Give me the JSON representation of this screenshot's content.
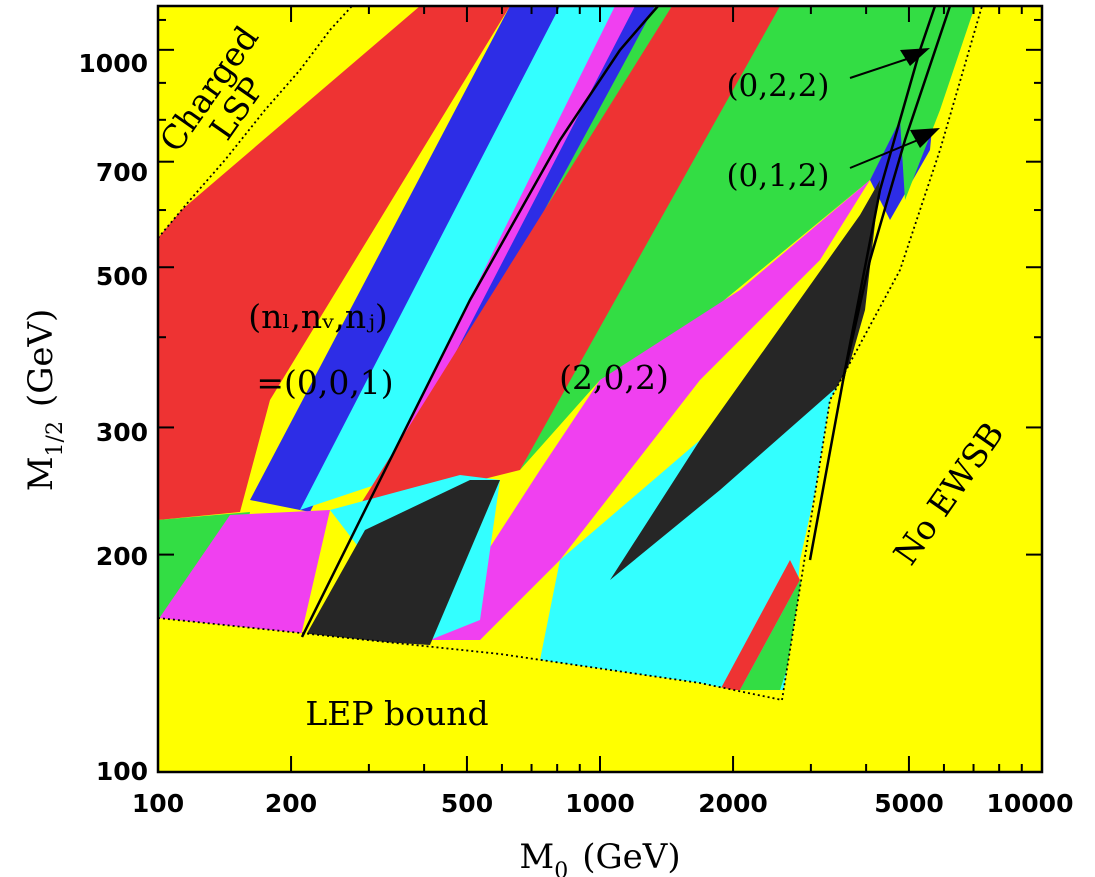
{
  "chart_data": {
    "type": "heatmap",
    "title": "",
    "xlabel": "M",
    "xlabel_sub": "0",
    "xlabel_unit": "(GeV)",
    "ylabel": "M",
    "ylabel_sub": "1/2",
    "ylabel_unit": "(GeV)",
    "x_scale": "log",
    "y_scale": "log",
    "xlim": [
      100,
      10000
    ],
    "ylim": [
      100,
      1150
    ],
    "x_ticks": [
      100,
      200,
      500,
      1000,
      2000,
      5000,
      10000
    ],
    "x_tick_labels": [
      "100",
      "200",
      "500",
      "1000",
      "2000",
      "5000",
      "10000"
    ],
    "y_ticks": [
      100,
      200,
      300,
      500,
      700,
      1000
    ],
    "y_tick_labels": [
      "100",
      "200",
      "300",
      "500",
      "700",
      "1000"
    ],
    "colors": {
      "yellow": "#ffff00",
      "red": "#ee3333",
      "blue": "#2d2de6",
      "cyan": "#33ffff",
      "magenta": "#f040f0",
      "green": "#33dd44",
      "black": "#262626"
    },
    "excluded_regions": [
      {
        "name": "charged-lsp",
        "label_line1": "Charged",
        "label_line2": "LSP",
        "color": "#ffff00",
        "boundary": [
          [
            100,
            560
          ],
          [
            130,
            640
          ],
          [
            160,
            780
          ],
          [
            200,
            950
          ],
          [
            235,
            1150
          ]
        ]
      },
      {
        "name": "lep-bound",
        "label": "LEP bound",
        "color": "#ffff00",
        "boundary": [
          [
            100,
            163
          ],
          [
            500,
            150
          ],
          [
            1500,
            139
          ],
          [
            2600,
            130
          ]
        ]
      },
      {
        "name": "no-ewsb",
        "label": "No EWSB",
        "color": "#ffff00",
        "boundary": [
          [
            2600,
            130
          ],
          [
            3500,
            300
          ],
          [
            5500,
            700
          ],
          [
            7500,
            1150
          ]
        ]
      }
    ],
    "band_colors_along_line": [
      "red",
      "blue",
      "cyan",
      "magenta",
      "green",
      "red",
      "black",
      "magenta",
      "green",
      "cyan",
      "blue",
      "red",
      "green"
    ],
    "annotations": [
      {
        "text_line1": "(nₗ,nᵥ,nⱼ)",
        "text_line2": "=(0,0,1)",
        "x": 170,
        "y": 370
      },
      {
        "text": "(2,0,2)",
        "x": 1050,
        "y": 345
      },
      {
        "text": "(0,2,2)",
        "x": 3400,
        "y": 940,
        "arrow_to": [
          5000,
          1020
        ]
      },
      {
        "text": "(0,1,2)",
        "x": 3400,
        "y": 680,
        "arrow_to": [
          5700,
          830
        ]
      }
    ]
  }
}
